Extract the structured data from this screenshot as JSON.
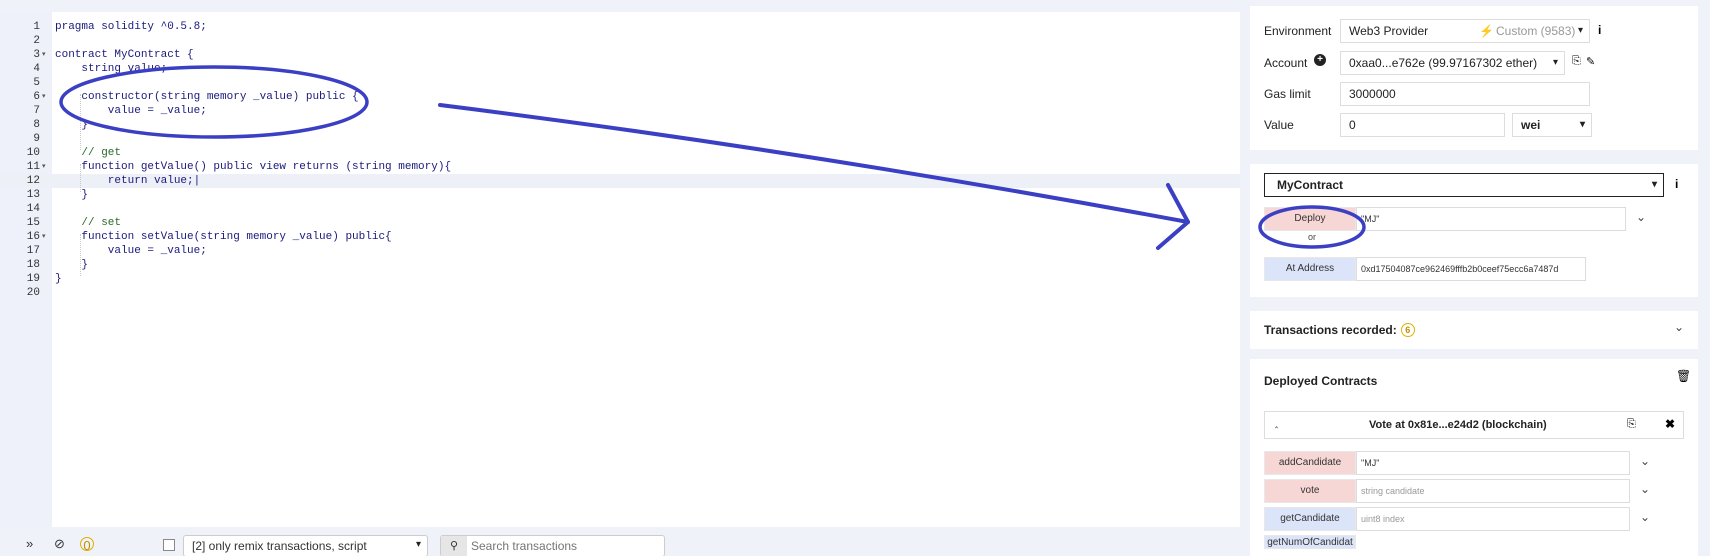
{
  "editor": {
    "lines": [
      {
        "n": "1",
        "text": "pragma solidity ^0.5.8;",
        "fold": false,
        "comment": false
      },
      {
        "n": "2",
        "text": "",
        "fold": false,
        "comment": false
      },
      {
        "n": "3",
        "text": "contract MyContract {",
        "fold": true,
        "comment": false
      },
      {
        "n": "4",
        "text": "    string value;",
        "fold": false,
        "comment": false
      },
      {
        "n": "5",
        "text": "",
        "fold": false,
        "comment": false
      },
      {
        "n": "6",
        "text": "    constructor(string memory _value) public {",
        "fold": true,
        "comment": false
      },
      {
        "n": "7",
        "text": "        value = _value;",
        "fold": false,
        "comment": false
      },
      {
        "n": "8",
        "text": "    }",
        "fold": false,
        "comment": false
      },
      {
        "n": "9",
        "text": "",
        "fold": false,
        "comment": false
      },
      {
        "n": "10",
        "text": "    // get",
        "fold": false,
        "comment": true
      },
      {
        "n": "11",
        "text": "    function getValue() public view returns (string memory){",
        "fold": true,
        "comment": false
      },
      {
        "n": "12",
        "text": "        return value;|",
        "fold": false,
        "comment": false
      },
      {
        "n": "13",
        "text": "    }",
        "fold": false,
        "comment": false
      },
      {
        "n": "14",
        "text": "",
        "fold": false,
        "comment": false
      },
      {
        "n": "15",
        "text": "    // set",
        "fold": false,
        "comment": true
      },
      {
        "n": "16",
        "text": "    function setValue(string memory _value) public{",
        "fold": true,
        "comment": false
      },
      {
        "n": "17",
        "text": "        value = _value;",
        "fold": false,
        "comment": false
      },
      {
        "n": "18",
        "text": "    }",
        "fold": false,
        "comment": false
      },
      {
        "n": "19",
        "text": "}",
        "fold": false,
        "comment": false
      },
      {
        "n": "20",
        "text": "",
        "fold": false,
        "comment": false
      }
    ],
    "highlighted_line": "12"
  },
  "terminal": {
    "collapse_icon": "double-chevron-down-icon",
    "clear_icon": "block-icon",
    "pending_count": "0",
    "listen_select": "[2] only remix transactions, script",
    "search_placeholder": "Search transactions"
  },
  "run": {
    "environment_label": "Environment",
    "environment_value": "Web3 Provider",
    "environment_custom": "Custom (9583)",
    "account_label": "Account",
    "account_value": "0xaa0...e762e (99.97167302 ether)",
    "gas_label": "Gas limit",
    "gas_value": "3000000",
    "value_label": "Value",
    "value_amount": "0",
    "value_unit": "wei"
  },
  "deploy": {
    "contract_select": "MyContract",
    "deploy_button": "Deploy",
    "deploy_arg": "\"MJ\"",
    "or_text": "or",
    "at_address_button": "At Address",
    "at_address_value": "0xd17504087ce962469fffb2b0ceef75ecc6a7487d"
  },
  "transactions": {
    "label": "Transactions recorded:",
    "count": "6"
  },
  "deployed": {
    "title": "Deployed Contracts",
    "instance_title": "Vote at 0x81e...e24d2 (blockchain)",
    "functions": [
      {
        "name": "addCandidate",
        "arg": "\"MJ\"",
        "placeholder": false,
        "kind": "red"
      },
      {
        "name": "vote",
        "arg": "string candidate",
        "placeholder": true,
        "kind": "red"
      },
      {
        "name": "getCandidate",
        "arg": "uint8 index",
        "placeholder": true,
        "kind": "blue"
      },
      {
        "name": "getNumOfCandidat",
        "arg": "",
        "placeholder": false,
        "kind": "blue"
      }
    ]
  },
  "colors": {
    "annotation": "#3b3fc4",
    "transact_button": "#f7d6d6",
    "call_button": "#dbe4f8",
    "background": "#f0f2fa"
  }
}
